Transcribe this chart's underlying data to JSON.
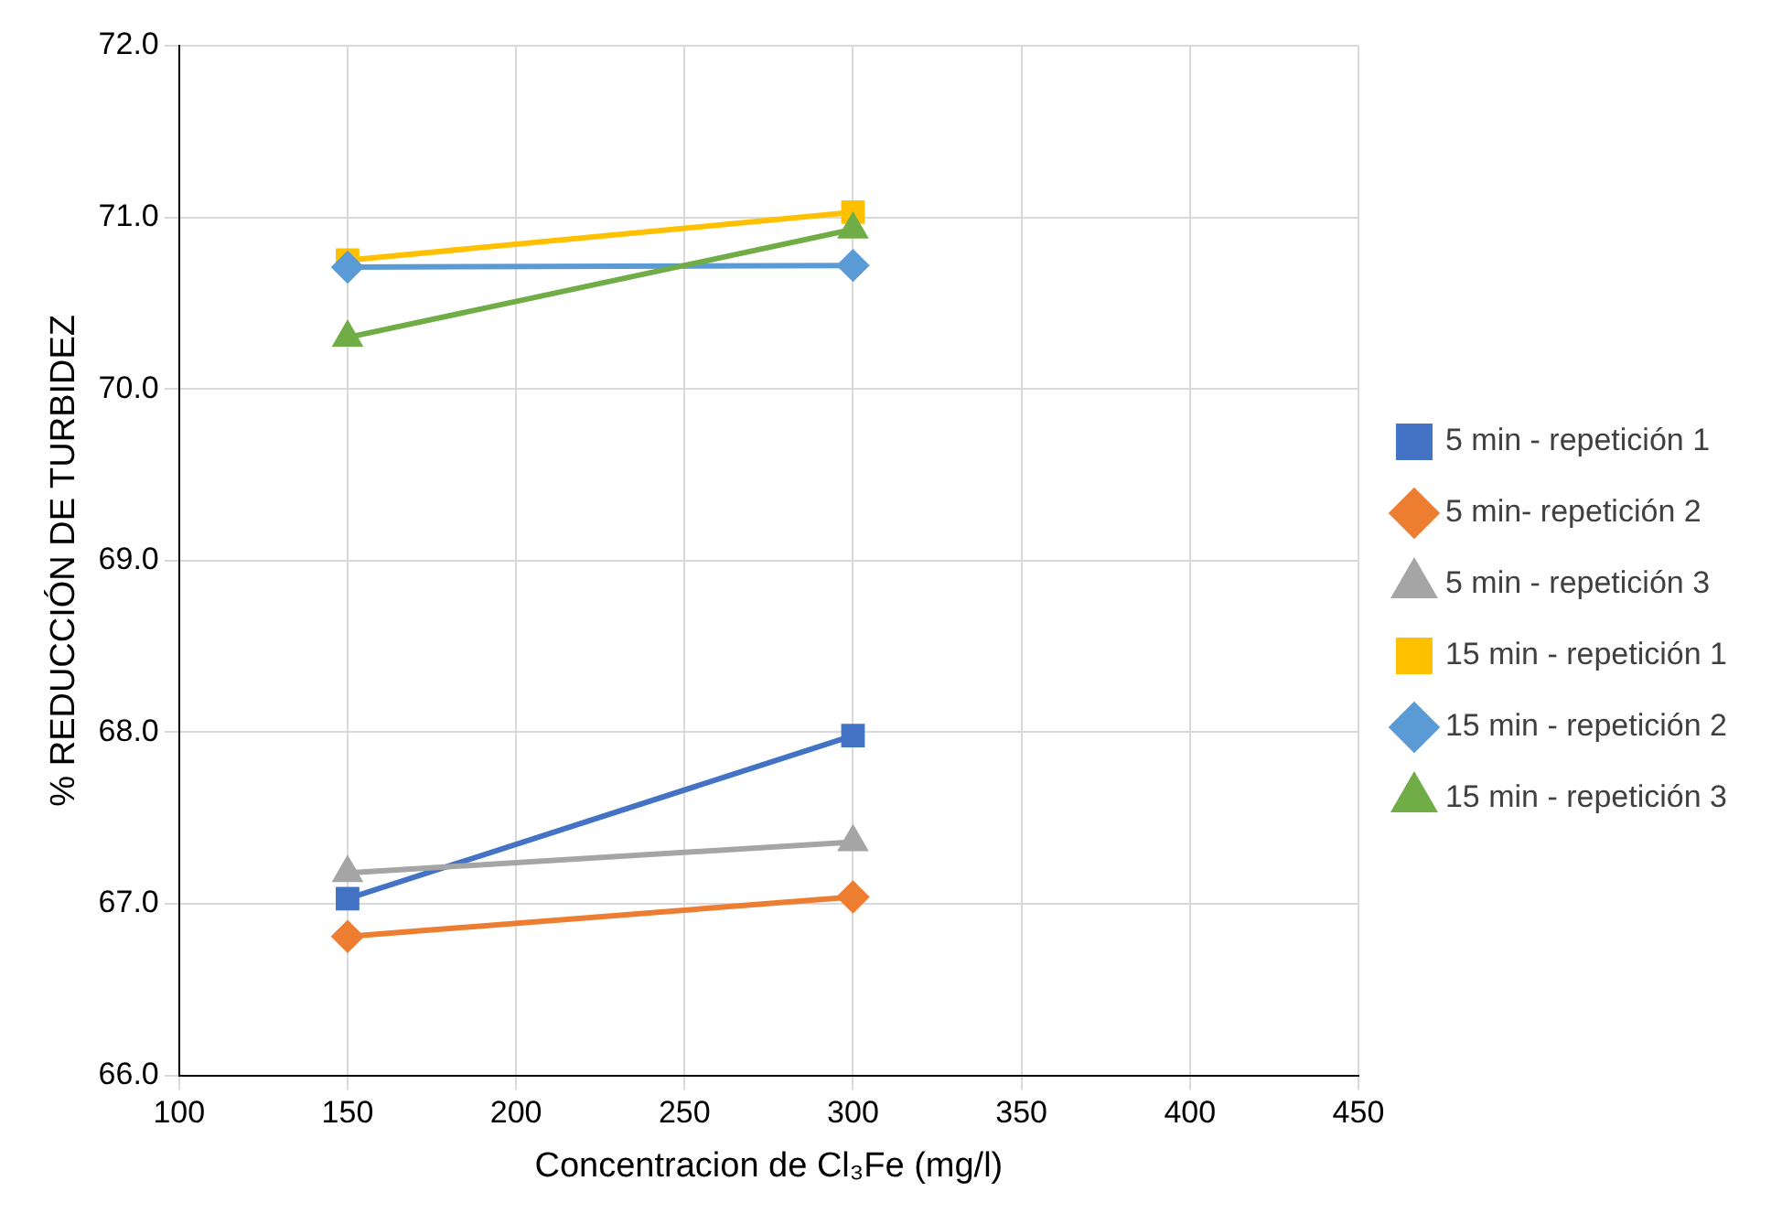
{
  "chart_data": {
    "type": "line",
    "xlabel": "Concentracion de Cl₃Fe (mg/l)",
    "ylabel": "% REDUCCIÓN DE TURBIDEZ",
    "x": [
      150,
      300
    ],
    "series": [
      {
        "name": "5 min - repetición 1",
        "color": "#4472c4",
        "marker": "square",
        "values": [
          67.03,
          67.98
        ]
      },
      {
        "name": "5 min- repetición 2",
        "color": "#ed7d31",
        "marker": "diamond",
        "values": [
          66.81,
          67.04
        ]
      },
      {
        "name": "5 min - repetición 3",
        "color": "#a5a5a5",
        "marker": "triangle",
        "values": [
          67.18,
          67.36
        ]
      },
      {
        "name": "15 min - repetición 1",
        "color": "#ffc000",
        "marker": "square",
        "values": [
          70.75,
          71.03
        ]
      },
      {
        "name": "15 min - repetición 2",
        "color": "#5b9bd5",
        "marker": "diamond",
        "values": [
          70.71,
          70.72
        ]
      },
      {
        "name": "15 min - repetición 3",
        "color": "#70ad47",
        "marker": "triangle",
        "values": [
          70.3,
          70.93
        ]
      }
    ],
    "xlim": [
      100,
      450
    ],
    "xticks": [
      100,
      150,
      200,
      250,
      300,
      350,
      400,
      450
    ],
    "ylim": [
      66,
      72
    ],
    "yticks": [
      {
        "value": 66,
        "label": "66.0"
      },
      {
        "value": 67,
        "label": "67.0"
      },
      {
        "value": 68,
        "label": "68.0"
      },
      {
        "value": 69,
        "label": "69.0"
      },
      {
        "value": 70,
        "label": "70.0"
      },
      {
        "value": 71,
        "label": "71.0"
      },
      {
        "value": 72,
        "label": "72.0"
      }
    ],
    "grid": true,
    "legend": "right"
  }
}
